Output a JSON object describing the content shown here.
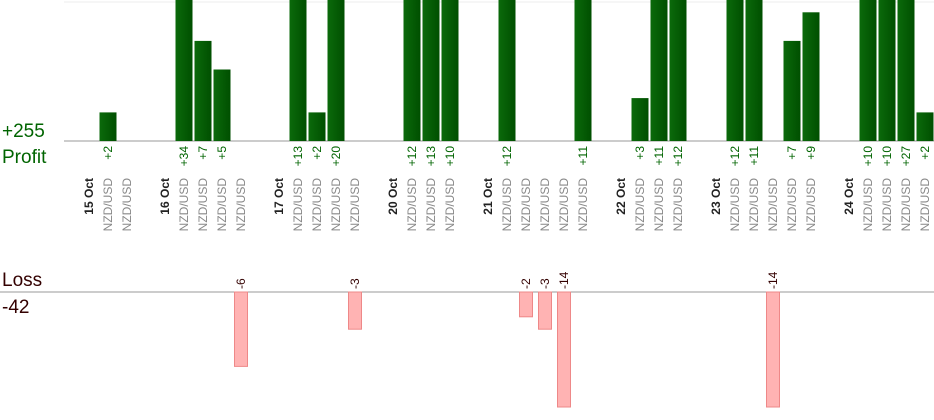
{
  "chart_data": {
    "type": "bar",
    "profit_label": "Profit",
    "profit_total": 255,
    "profit_total_label": "+255",
    "loss_label": "Loss",
    "loss_total": -42,
    "loss_total_label": "-42",
    "days": [
      {
        "date": "15 Oct",
        "trades": [
          {
            "symbol": "NZD/USD",
            "value": 2,
            "value_label": "+2"
          },
          {
            "symbol": "NZD/USD",
            "value": 0
          }
        ]
      },
      {
        "date": "16 Oct",
        "trades": [
          {
            "symbol": "NZD/USD",
            "value": 34,
            "value_label": "+34"
          },
          {
            "symbol": "NZD/USD",
            "value": 7,
            "value_label": "+7"
          },
          {
            "symbol": "NZD/USD",
            "value": 5,
            "value_label": "+5"
          },
          {
            "symbol": "NZD/USD",
            "value": -6,
            "value_label": "-6"
          }
        ]
      },
      {
        "date": "17 Oct",
        "trades": [
          {
            "symbol": "NZD/USD",
            "value": 13,
            "value_label": "+13"
          },
          {
            "symbol": "NZD/USD",
            "value": 2,
            "value_label": "+2"
          },
          {
            "symbol": "NZD/USD",
            "value": 20,
            "value_label": "+20"
          },
          {
            "symbol": "NZD/USD",
            "value": -3,
            "value_label": "-3"
          }
        ]
      },
      {
        "date": "20 Oct",
        "trades": [
          {
            "symbol": "NZD/USD",
            "value": 12,
            "value_label": "+12"
          },
          {
            "symbol": "NZD/USD",
            "value": 13,
            "value_label": "+13"
          },
          {
            "symbol": "NZD/USD",
            "value": 10,
            "value_label": "+10"
          }
        ]
      },
      {
        "date": "21 Oct",
        "trades": [
          {
            "symbol": "NZD/USD",
            "value": 12,
            "value_label": "+12"
          },
          {
            "symbol": "NZD/USD",
            "value": -2,
            "value_label": "-2"
          },
          {
            "symbol": "NZD/USD",
            "value": -3,
            "value_label": "-3"
          },
          {
            "symbol": "NZD/USD",
            "value": -14,
            "value_label": "-14"
          },
          {
            "symbol": "NZD/USD",
            "value": 11,
            "value_label": "+11"
          }
        ]
      },
      {
        "date": "22 Oct",
        "trades": [
          {
            "symbol": "NZD/USD",
            "value": 3,
            "value_label": "+3"
          },
          {
            "symbol": "NZD/USD",
            "value": 11,
            "value_label": "+11"
          },
          {
            "symbol": "NZD/USD",
            "value": 12,
            "value_label": "+12"
          }
        ]
      },
      {
        "date": "23 Oct",
        "trades": [
          {
            "symbol": "NZD/USD",
            "value": 12,
            "value_label": "+12"
          },
          {
            "symbol": "NZD/USD",
            "value": 11,
            "value_label": "+11"
          },
          {
            "symbol": "NZD/USD",
            "value": -14,
            "value_label": "-14"
          },
          {
            "symbol": "NZD/USD",
            "value": 7,
            "value_label": "+7"
          },
          {
            "symbol": "NZD/USD",
            "value": 9,
            "value_label": "+9"
          }
        ]
      },
      {
        "date": "24 Oct",
        "trades": [
          {
            "symbol": "NZD/USD",
            "value": 10,
            "value_label": "+10"
          },
          {
            "symbol": "NZD/USD",
            "value": 10,
            "value_label": "+10"
          },
          {
            "symbol": "NZD/USD",
            "value": 27,
            "value_label": "+27"
          },
          {
            "symbol": "NZD/USD",
            "value": 2,
            "value_label": "+2"
          }
        ]
      }
    ]
  }
}
